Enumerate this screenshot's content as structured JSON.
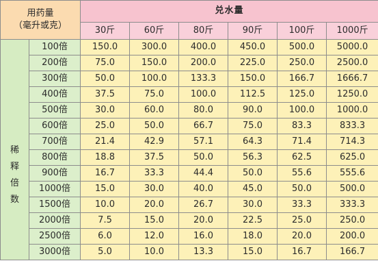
{
  "corner_header": {
    "line1": "用药量",
    "line2": "（毫升或克）"
  },
  "water_header": "兑水量",
  "weights": [
    "30斤",
    "60斤",
    "80斤",
    "90斤",
    "100斤",
    "1000斤"
  ],
  "side_label_chars": [
    "稀",
    "释",
    "倍",
    "数"
  ],
  "rows": [
    {
      "fold": "100倍",
      "values": [
        "150.0",
        "300.0",
        "400.0",
        "450.0",
        "500.0",
        "5000.0"
      ]
    },
    {
      "fold": "200倍",
      "values": [
        "75.0",
        "150.0",
        "200.0",
        "225.0",
        "250.0",
        "2500.0"
      ]
    },
    {
      "fold": "300倍",
      "values": [
        "50.0",
        "100.0",
        "133.3",
        "150.0",
        "166.7",
        "1666.7"
      ]
    },
    {
      "fold": "400倍",
      "values": [
        "37.5",
        "75.0",
        "100.0",
        "112.5",
        "125.0",
        "1250.0"
      ]
    },
    {
      "fold": "500倍",
      "values": [
        "30.0",
        "60.0",
        "80.0",
        "90.0",
        "100.0",
        "1000.0"
      ]
    },
    {
      "fold": "600倍",
      "values": [
        "25.0",
        "50.0",
        "66.7",
        "75.0",
        "83.3",
        "833.3"
      ]
    },
    {
      "fold": "700倍",
      "values": [
        "21.4",
        "42.9",
        "57.1",
        "64.3",
        "71.4",
        "714.3"
      ]
    },
    {
      "fold": "800倍",
      "values": [
        "18.8",
        "37.5",
        "50.0",
        "56.3",
        "62.5",
        "625.0"
      ]
    },
    {
      "fold": "900倍",
      "values": [
        "16.7",
        "33.3",
        "44.4",
        "50.0",
        "55.6",
        "555.6"
      ]
    },
    {
      "fold": "1000倍",
      "values": [
        "15.0",
        "30.0",
        "40.0",
        "45.0",
        "50.0",
        "500.0"
      ]
    },
    {
      "fold": "1500倍",
      "values": [
        "10.0",
        "20.0",
        "26.7",
        "30.0",
        "33.3",
        "333.3"
      ]
    },
    {
      "fold": "2000倍",
      "values": [
        "7.5",
        "15.0",
        "20.0",
        "22.5",
        "25.0",
        "250.0"
      ]
    },
    {
      "fold": "2500倍",
      "values": [
        "6.0",
        "12.0",
        "16.0",
        "18.0",
        "20.0",
        "200.0"
      ]
    },
    {
      "fold": "3000倍",
      "values": [
        "5.0",
        "10.0",
        "13.3",
        "15.0",
        "16.7",
        "166.7"
      ]
    }
  ]
}
